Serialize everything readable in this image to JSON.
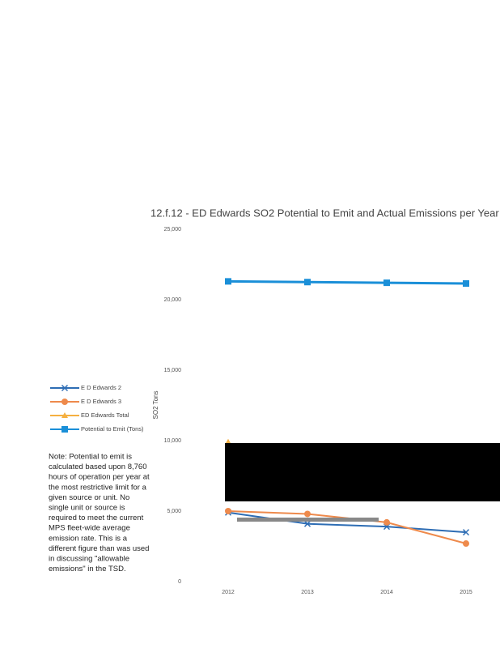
{
  "chart_data": {
    "type": "line",
    "title": "12.f.12 - ED Edwards SO2 Potential to Emit and Actual Emissions per Year",
    "y_label": "SO2 Tons",
    "categories": [
      "2012",
      "2013",
      "2014",
      "2015"
    ],
    "ylim": [
      0,
      25000
    ],
    "yticks": [
      0,
      {
        "value": 5000,
        "label": "5,000"
      },
      {
        "value": 10000,
        "label": "10,000"
      },
      {
        "value": 15000,
        "label": "15,000"
      },
      {
        "value": 20000,
        "label": "20,000"
      },
      {
        "value": 25000,
        "label": "25,000"
      }
    ],
    "series": [
      {
        "name": "E D Edwards 2",
        "color": "#2e6db4",
        "marker": "x",
        "values": [
          4900,
          4100,
          3900,
          3500
        ]
      },
      {
        "name": "E D Edwards 3",
        "color": "#ee8a4c",
        "marker": "circle",
        "values": [
          5000,
          4800,
          4200,
          2700
        ]
      },
      {
        "name": "ED Edwards Total",
        "color": "#f5b041",
        "marker": "triangle",
        "values": [
          9900,
          null,
          null,
          null
        ]
      },
      {
        "name": "Potential to Emit (Tons)",
        "color": "#1a8fd8",
        "marker": "square",
        "values": [
          21300,
          21250,
          21200,
          21150
        ]
      }
    ],
    "note_lines": [
      "Note: Potential to emit is",
      "calculated based upon 8,760",
      "hours of operation per year at",
      "the most restrictive limit for a",
      "given source or unit.  No",
      "single unit or source is",
      "required to meet the current",
      "MPS fleet-wide average",
      "emission rate.  This is a",
      "different figure than was used",
      "in discussing \"allowable",
      "emissions\" in the TSD."
    ]
  }
}
